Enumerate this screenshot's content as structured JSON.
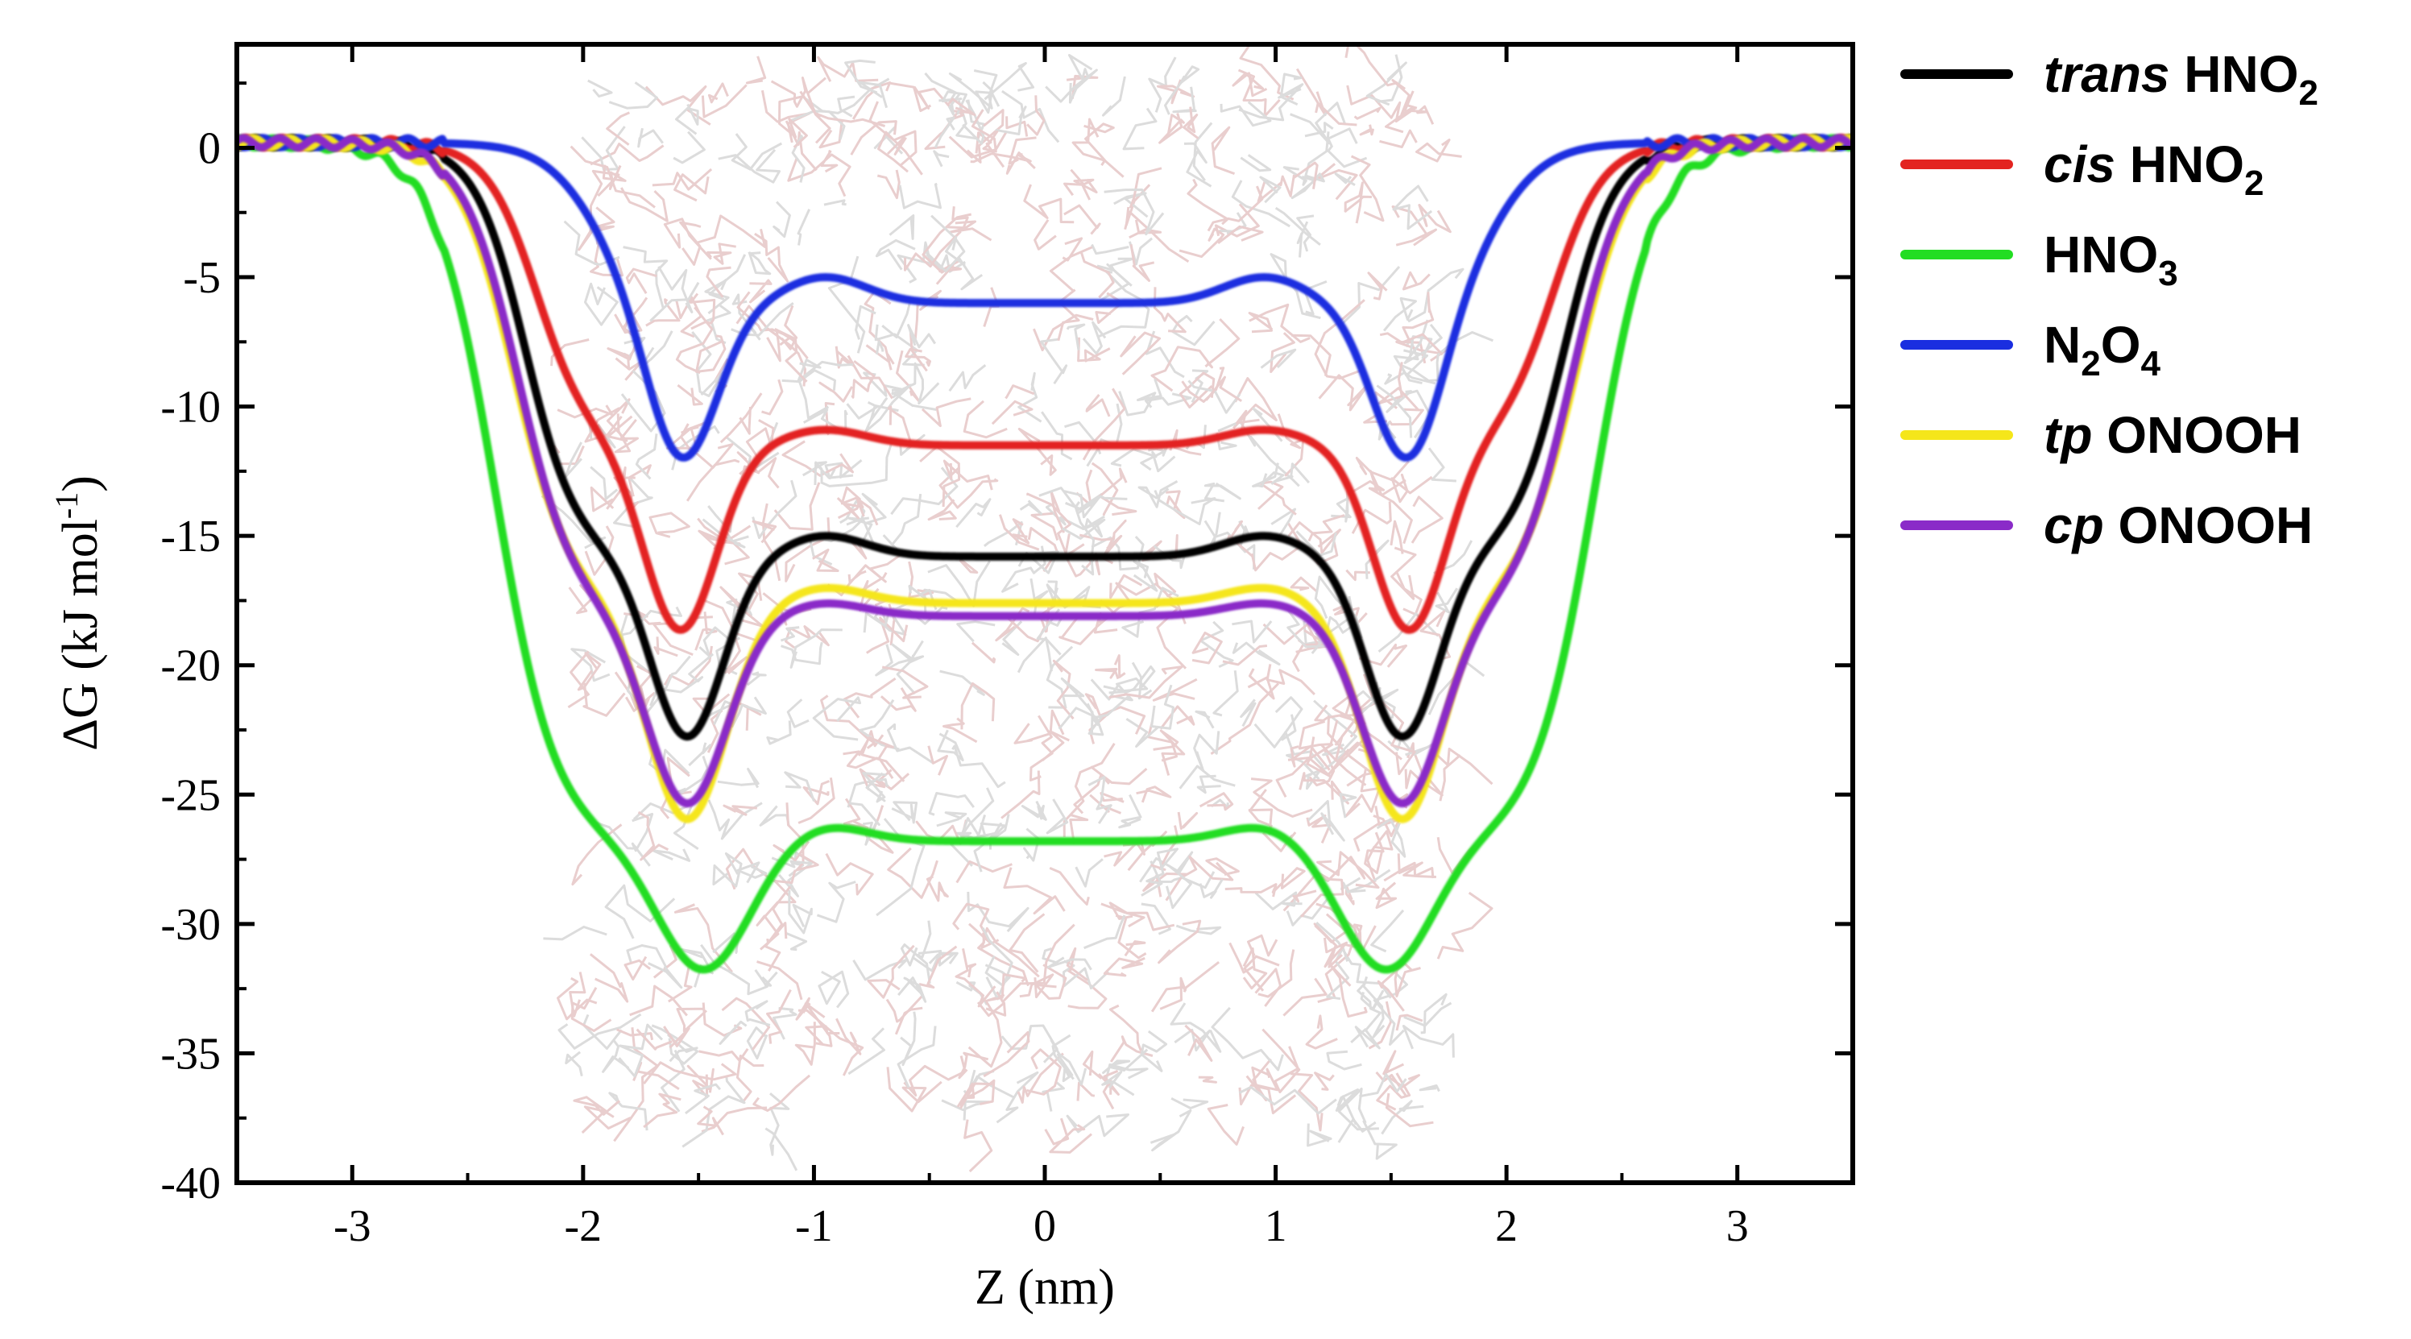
{
  "chart_data": {
    "type": "line",
    "title": "",
    "xlabel": "Z (nm)",
    "ylabel_main": "ΔG (kJ mol",
    "ylabel_sup": "-1",
    "ylabel_close": ")",
    "xlim": [
      -3.5,
      3.5
    ],
    "ylim": [
      -40,
      4
    ],
    "xticks": [
      -3,
      -2,
      -1,
      0,
      1,
      2,
      3
    ],
    "xtick_labels": [
      "-3",
      "-2",
      "-1",
      "0",
      "1",
      "2",
      "3"
    ],
    "yticks": [
      0,
      -5,
      -10,
      -15,
      -20,
      -25,
      -30,
      -35,
      -40
    ],
    "ytick_labels": [
      "0",
      "-5",
      "-10",
      "-15",
      "-20",
      "-25",
      "-30",
      "-35",
      "-40"
    ],
    "background": "faint lipid bilayer molecular rendering",
    "legend_position": "outside-right-top",
    "series": [
      {
        "name": "trans HNO2",
        "prefix": "trans",
        "base": "HNO",
        "sub": "2",
        "suffix": "",
        "color": "#000000",
        "params": {
          "edge": 2.25,
          "width_edge": 0.11,
          "mid": -15.8,
          "dip": -22.8,
          "dip_pos": 1.55,
          "dip_w": 0.22,
          "shoulder": 0.8
        }
      },
      {
        "name": "cis HNO2",
        "prefix": "cis",
        "base": "HNO",
        "sub": "2",
        "suffix": "",
        "color": "#e32420",
        "params": {
          "edge": 2.2,
          "width_edge": 0.11,
          "mid": -11.5,
          "dip": -18.7,
          "dip_pos": 1.58,
          "dip_w": 0.22,
          "shoulder": 0.6
        }
      },
      {
        "name": "HNO3",
        "prefix": "",
        "base": "HNO",
        "sub": "3",
        "suffix": "",
        "color": "#22dd22",
        "params": {
          "edge": 2.38,
          "width_edge": 0.13,
          "mid": -26.8,
          "dip": -31.8,
          "dip_pos": 1.48,
          "dip_w": 0.28,
          "shoulder": 0.6
        }
      },
      {
        "name": "N2O4",
        "prefix": "",
        "base": "N",
        "sub": "2",
        "suffix": "O",
        "sub2": "4",
        "color": "#1a2ee0",
        "params": {
          "edge": 1.95,
          "width_edge": 0.12,
          "mid": -6.0,
          "dip": -12.5,
          "dip_pos": 1.58,
          "dip_w": 0.22,
          "shoulder": 1.0
        }
      },
      {
        "name": "tp ONOOH",
        "prefix": "tp",
        "base": "ONOOH",
        "sub": "",
        "suffix": "",
        "color": "#f5e61a",
        "params": {
          "edge": 2.3,
          "width_edge": 0.12,
          "mid": -17.6,
          "dip": -26.0,
          "dip_pos": 1.55,
          "dip_w": 0.24,
          "shoulder": 0.6
        }
      },
      {
        "name": "cp ONOOH",
        "prefix": "cp",
        "base": "ONOOH",
        "sub": "",
        "suffix": "",
        "color": "#8a2bc8",
        "params": {
          "edge": 2.28,
          "width_edge": 0.12,
          "mid": -18.1,
          "dip": -25.4,
          "dip_pos": 1.55,
          "dip_w": 0.24,
          "shoulder": 0.5
        }
      }
    ]
  }
}
